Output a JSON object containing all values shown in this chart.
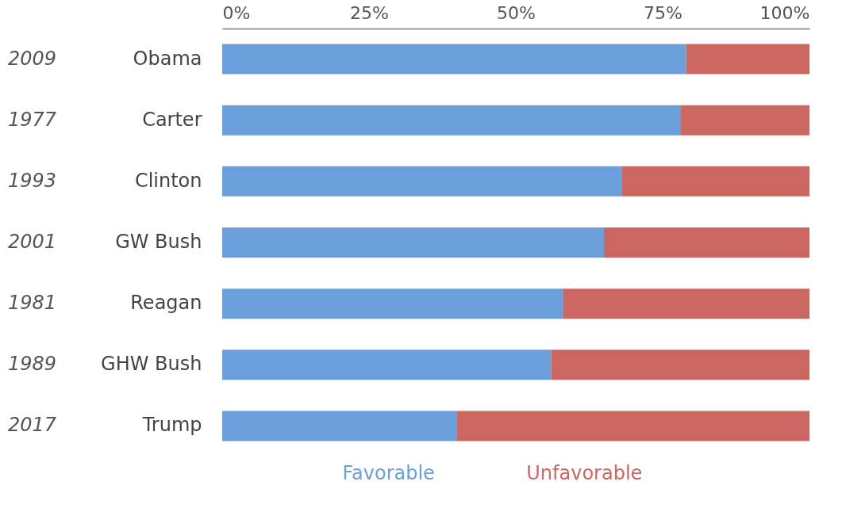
{
  "chart_data": {
    "type": "bar",
    "orientation": "horizontal",
    "stacked": true,
    "categories": [
      "Obama",
      "Carter",
      "Clinton",
      "GW Bush",
      "Reagan",
      "GHW Bush",
      "Trump"
    ],
    "y2_categories": [
      "2009",
      "1977",
      "1993",
      "2001",
      "1981",
      "1989",
      "2017"
    ],
    "series": [
      {
        "name": "Favorable",
        "color": "#6a9fdc",
        "values": [
          79,
          78,
          68,
          65,
          58,
          56,
          40
        ]
      },
      {
        "name": "Unfavorable",
        "color": "#cc6660",
        "values": [
          21,
          22,
          32,
          35,
          42,
          44,
          60
        ]
      }
    ],
    "xlim": [
      0,
      100
    ],
    "xticks": [
      {
        "value": 0,
        "label": "0%"
      },
      {
        "value": 25,
        "label": "25%"
      },
      {
        "value": 50,
        "label": "50%"
      },
      {
        "value": 75,
        "label": "75%"
      },
      {
        "value": 100,
        "label": "100%"
      }
    ],
    "grid": false,
    "legend": "bottom"
  }
}
